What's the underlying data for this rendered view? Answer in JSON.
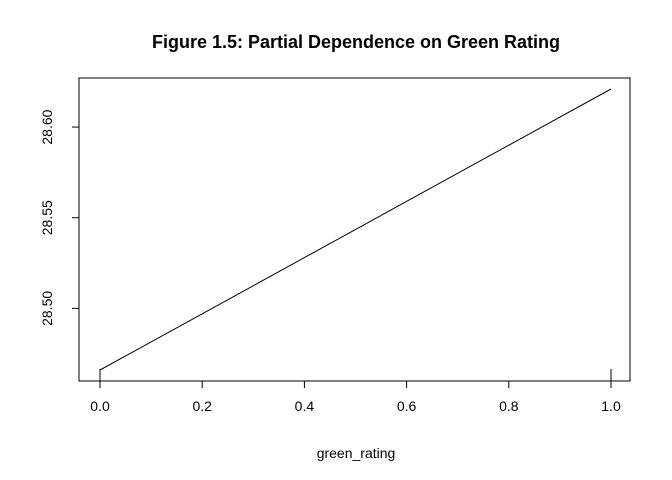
{
  "chart_data": {
    "type": "line",
    "title": "Figure 1.5: Partial Dependence on Green Rating",
    "xlabel": "green_rating",
    "ylabel": "",
    "x": [
      0.0,
      1.0
    ],
    "series": [
      {
        "values": [
          28.466,
          28.621
        ]
      }
    ],
    "xlim": [
      0.0,
      1.0
    ],
    "ylim": [
      28.466,
      28.621
    ],
    "xticks": [
      0.0,
      0.2,
      0.4,
      0.6,
      0.8,
      1.0
    ],
    "xtick_labels": [
      "0.0",
      "0.2",
      "0.4",
      "0.6",
      "0.8",
      "1.0"
    ],
    "yticks": [
      28.5,
      28.55,
      28.6
    ],
    "ytick_labels": [
      "28.50",
      "28.55",
      "28.60"
    ],
    "grid": false,
    "line_color": "#000000"
  }
}
